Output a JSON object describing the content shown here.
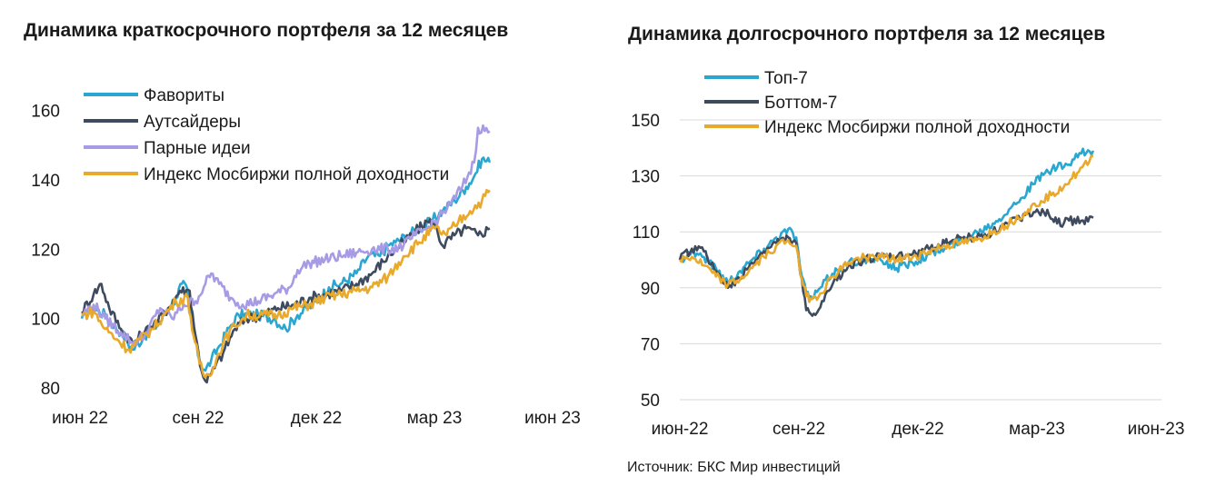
{
  "source": "Источник: БКС Мир инвестиций",
  "chart_data": [
    {
      "type": "line",
      "title": "Динамика краткосрочного портфеля за 12 месяцев",
      "xlabel": "",
      "ylabel": "",
      "x_ticks": [
        "июн 22",
        "сен 22",
        "дек 22",
        "мар 23",
        "июн 23"
      ],
      "y_ticks": [
        80,
        100,
        120,
        140,
        160
      ],
      "ylim": [
        80,
        162
      ],
      "grid": false,
      "legend": "top-left",
      "series": [
        {
          "name": "Фавориты",
          "color": "#2AA7D0",
          "points": [
            [
              0,
              100
            ],
            [
              0.3,
              103
            ],
            [
              0.6,
              101
            ],
            [
              1.0,
              96
            ],
            [
              1.3,
              91
            ],
            [
              1.6,
              95
            ],
            [
              2.0,
              99
            ],
            [
              2.2,
              103
            ],
            [
              2.4,
              106
            ],
            [
              2.55,
              110
            ],
            [
              2.7,
              108
            ],
            [
              2.8,
              98
            ],
            [
              3.0,
              88
            ],
            [
              3.15,
              85
            ],
            [
              3.3,
              88
            ],
            [
              3.5,
              92
            ],
            [
              3.8,
              98
            ],
            [
              4.0,
              101
            ],
            [
              4.5,
              101
            ],
            [
              4.9,
              100
            ],
            [
              5.2,
              97
            ],
            [
              5.5,
              101
            ],
            [
              6.0,
              105
            ],
            [
              6.3,
              109
            ],
            [
              6.6,
              110
            ],
            [
              7.0,
              113
            ],
            [
              7.3,
              118
            ],
            [
              7.6,
              118
            ],
            [
              7.8,
              121
            ],
            [
              8.0,
              122
            ],
            [
              8.3,
              124
            ],
            [
              8.6,
              126
            ],
            [
              8.9,
              128
            ],
            [
              9.2,
              131
            ],
            [
              9.5,
              134
            ],
            [
              9.8,
              138
            ],
            [
              10.0,
              141
            ],
            [
              10.2,
              146
            ],
            [
              10.4,
              145
            ]
          ]
        },
        {
          "name": "Аутсайдеры",
          "color": "#3E4A5E",
          "points": [
            [
              0,
              102
            ],
            [
              0.3,
              107
            ],
            [
              0.5,
              110
            ],
            [
              0.7,
              103
            ],
            [
              1.0,
              97
            ],
            [
              1.3,
              93
            ],
            [
              1.6,
              96
            ],
            [
              1.9,
              99
            ],
            [
              2.2,
              103
            ],
            [
              2.5,
              108
            ],
            [
              2.75,
              108
            ],
            [
              2.9,
              95
            ],
            [
              3.05,
              85
            ],
            [
              3.15,
              82
            ],
            [
              3.3,
              84
            ],
            [
              3.6,
              90
            ],
            [
              3.9,
              97
            ],
            [
              4.2,
              100
            ],
            [
              4.6,
              101
            ],
            [
              5.0,
              103
            ],
            [
              5.4,
              104
            ],
            [
              5.8,
              106
            ],
            [
              6.2,
              107
            ],
            [
              6.6,
              108
            ],
            [
              7.0,
              110
            ],
            [
              7.4,
              113
            ],
            [
              7.8,
              118
            ],
            [
              8.2,
              122
            ],
            [
              8.5,
              125
            ],
            [
              8.8,
              128
            ],
            [
              9.0,
              127
            ],
            [
              9.2,
              121
            ],
            [
              9.5,
              124
            ],
            [
              9.8,
              126
            ],
            [
              10.1,
              124
            ],
            [
              10.4,
              126
            ]
          ]
        },
        {
          "name": "Парные идеи",
          "color": "#A89BE6",
          "points": [
            [
              0,
              101
            ],
            [
              0.3,
              104
            ],
            [
              0.6,
              100
            ],
            [
              1.0,
              96
            ],
            [
              1.3,
              93
            ],
            [
              1.6,
              95
            ],
            [
              2.0,
              103
            ],
            [
              2.3,
              100
            ],
            [
              2.6,
              104
            ],
            [
              2.9,
              105
            ],
            [
              3.15,
              110
            ],
            [
              3.3,
              113
            ],
            [
              3.5,
              110
            ],
            [
              3.8,
              106
            ],
            [
              4.1,
              104
            ],
            [
              4.5,
              105
            ],
            [
              4.9,
              107
            ],
            [
              5.3,
              109
            ],
            [
              5.5,
              114
            ],
            [
              5.8,
              116
            ],
            [
              6.2,
              117
            ],
            [
              6.6,
              118
            ],
            [
              7.0,
              119
            ],
            [
              7.4,
              120
            ],
            [
              7.8,
              120
            ],
            [
              8.2,
              121
            ],
            [
              8.5,
              124
            ],
            [
              8.8,
              126
            ],
            [
              9.1,
              129
            ],
            [
              9.4,
              133
            ],
            [
              9.7,
              138
            ],
            [
              10.0,
              145
            ],
            [
              10.1,
              155
            ],
            [
              10.4,
              154
            ]
          ]
        },
        {
          "name": "Индекс Мосбиржи полной доходности",
          "color": "#E9A92A",
          "points": [
            [
              0,
              101
            ],
            [
              0.3,
              102
            ],
            [
              0.6,
              97
            ],
            [
              0.9,
              94
            ],
            [
              1.2,
              91
            ],
            [
              1.5,
              94
            ],
            [
              1.8,
              97
            ],
            [
              2.1,
              101
            ],
            [
              2.4,
              105
            ],
            [
              2.7,
              106
            ],
            [
              2.85,
              95
            ],
            [
              3.0,
              87
            ],
            [
              3.15,
              83
            ],
            [
              3.35,
              86
            ],
            [
              3.6,
              93
            ],
            [
              3.9,
              98
            ],
            [
              4.2,
              101
            ],
            [
              4.6,
              101
            ],
            [
              5.0,
              101
            ],
            [
              5.4,
              103
            ],
            [
              5.8,
              104
            ],
            [
              6.2,
              106
            ],
            [
              6.6,
              107
            ],
            [
              7.0,
              108
            ],
            [
              7.4,
              109
            ],
            [
              7.8,
              112
            ],
            [
              8.2,
              118
            ],
            [
              8.6,
              122
            ],
            [
              9.0,
              126
            ],
            [
              9.3,
              124
            ],
            [
              9.6,
              128
            ],
            [
              9.9,
              131
            ],
            [
              10.2,
              134
            ],
            [
              10.4,
              137
            ]
          ]
        }
      ]
    },
    {
      "type": "line",
      "title": "Динамика долгосрочного портфеля за 12 месяцев",
      "xlabel": "",
      "ylabel": "",
      "x_ticks": [
        "июн-22",
        "сен-22",
        "дек-22",
        "мар-23",
        "июн-23"
      ],
      "y_ticks": [
        50,
        70,
        90,
        110,
        130,
        150
      ],
      "ylim": [
        50,
        150
      ],
      "grid": true,
      "legend": "top-left",
      "series": [
        {
          "name": "Топ-7",
          "color": "#2AA7D0",
          "points": [
            [
              0,
              100
            ],
            [
              0.3,
              103
            ],
            [
              0.6,
              101
            ],
            [
              0.9,
              97
            ],
            [
              1.2,
              92
            ],
            [
              1.5,
              96
            ],
            [
              1.8,
              100
            ],
            [
              2.1,
              104
            ],
            [
              2.4,
              108
            ],
            [
              2.7,
              111
            ],
            [
              2.9,
              108
            ],
            [
              3.0,
              97
            ],
            [
              3.15,
              88
            ],
            [
              3.3,
              86
            ],
            [
              3.5,
              90
            ],
            [
              3.8,
              95
            ],
            [
              4.2,
              99
            ],
            [
              4.6,
              100
            ],
            [
              5.0,
              100
            ],
            [
              5.4,
              97
            ],
            [
              5.8,
              99
            ],
            [
              6.2,
              102
            ],
            [
              6.6,
              104
            ],
            [
              7.0,
              107
            ],
            [
              7.4,
              110
            ],
            [
              7.8,
              113
            ],
            [
              8.2,
              118
            ],
            [
              8.5,
              122
            ],
            [
              8.8,
              127
            ],
            [
              9.1,
              131
            ],
            [
              9.4,
              133
            ],
            [
              9.7,
              134
            ],
            [
              10.0,
              138
            ],
            [
              10.3,
              139
            ]
          ]
        },
        {
          "name": "Боттом-7",
          "color": "#3E4A5E",
          "points": [
            [
              0,
              100
            ],
            [
              0.3,
              104
            ],
            [
              0.6,
              103
            ],
            [
              0.9,
              96
            ],
            [
              1.2,
              90
            ],
            [
              1.5,
              93
            ],
            [
              1.8,
              99
            ],
            [
              2.1,
              103
            ],
            [
              2.4,
              106
            ],
            [
              2.7,
              108
            ],
            [
              2.9,
              106
            ],
            [
              3.0,
              95
            ],
            [
              3.15,
              82
            ],
            [
              3.3,
              80
            ],
            [
              3.5,
              83
            ],
            [
              3.8,
              91
            ],
            [
              4.2,
              98
            ],
            [
              4.6,
              100
            ],
            [
              5.0,
              101
            ],
            [
              5.4,
              101
            ],
            [
              5.8,
              102
            ],
            [
              6.2,
              104
            ],
            [
              6.6,
              106
            ],
            [
              7.0,
              108
            ],
            [
              7.4,
              108
            ],
            [
              7.8,
              110
            ],
            [
              8.2,
              113
            ],
            [
              8.6,
              116
            ],
            [
              8.9,
              118
            ],
            [
              9.2,
              116
            ],
            [
              9.4,
              113
            ],
            [
              9.7,
              114
            ],
            [
              10.0,
              114
            ],
            [
              10.3,
              115
            ]
          ]
        },
        {
          "name": "Индекс Мосбиржи полной доходности",
          "color": "#E9A92A",
          "points": [
            [
              0,
              100
            ],
            [
              0.3,
              101
            ],
            [
              0.6,
              98
            ],
            [
              0.9,
              94
            ],
            [
              1.2,
              91
            ],
            [
              1.5,
              93
            ],
            [
              1.8,
              97
            ],
            [
              2.1,
              101
            ],
            [
              2.4,
              105
            ],
            [
              2.7,
              107
            ],
            [
              2.9,
              105
            ],
            [
              3.0,
              95
            ],
            [
              3.15,
              87
            ],
            [
              3.3,
              86
            ],
            [
              3.5,
              88
            ],
            [
              3.8,
              94
            ],
            [
              4.2,
              99
            ],
            [
              4.6,
              101
            ],
            [
              5.0,
              101
            ],
            [
              5.4,
              100
            ],
            [
              5.8,
              101
            ],
            [
              6.2,
              103
            ],
            [
              6.6,
              105
            ],
            [
              7.0,
              106
            ],
            [
              7.4,
              107
            ],
            [
              7.8,
              110
            ],
            [
              8.2,
              113
            ],
            [
              8.6,
              117
            ],
            [
              9.0,
              121
            ],
            [
              9.3,
              124
            ],
            [
              9.6,
              127
            ],
            [
              9.9,
              131
            ],
            [
              10.2,
              135
            ],
            [
              10.3,
              137
            ]
          ]
        }
      ]
    }
  ]
}
